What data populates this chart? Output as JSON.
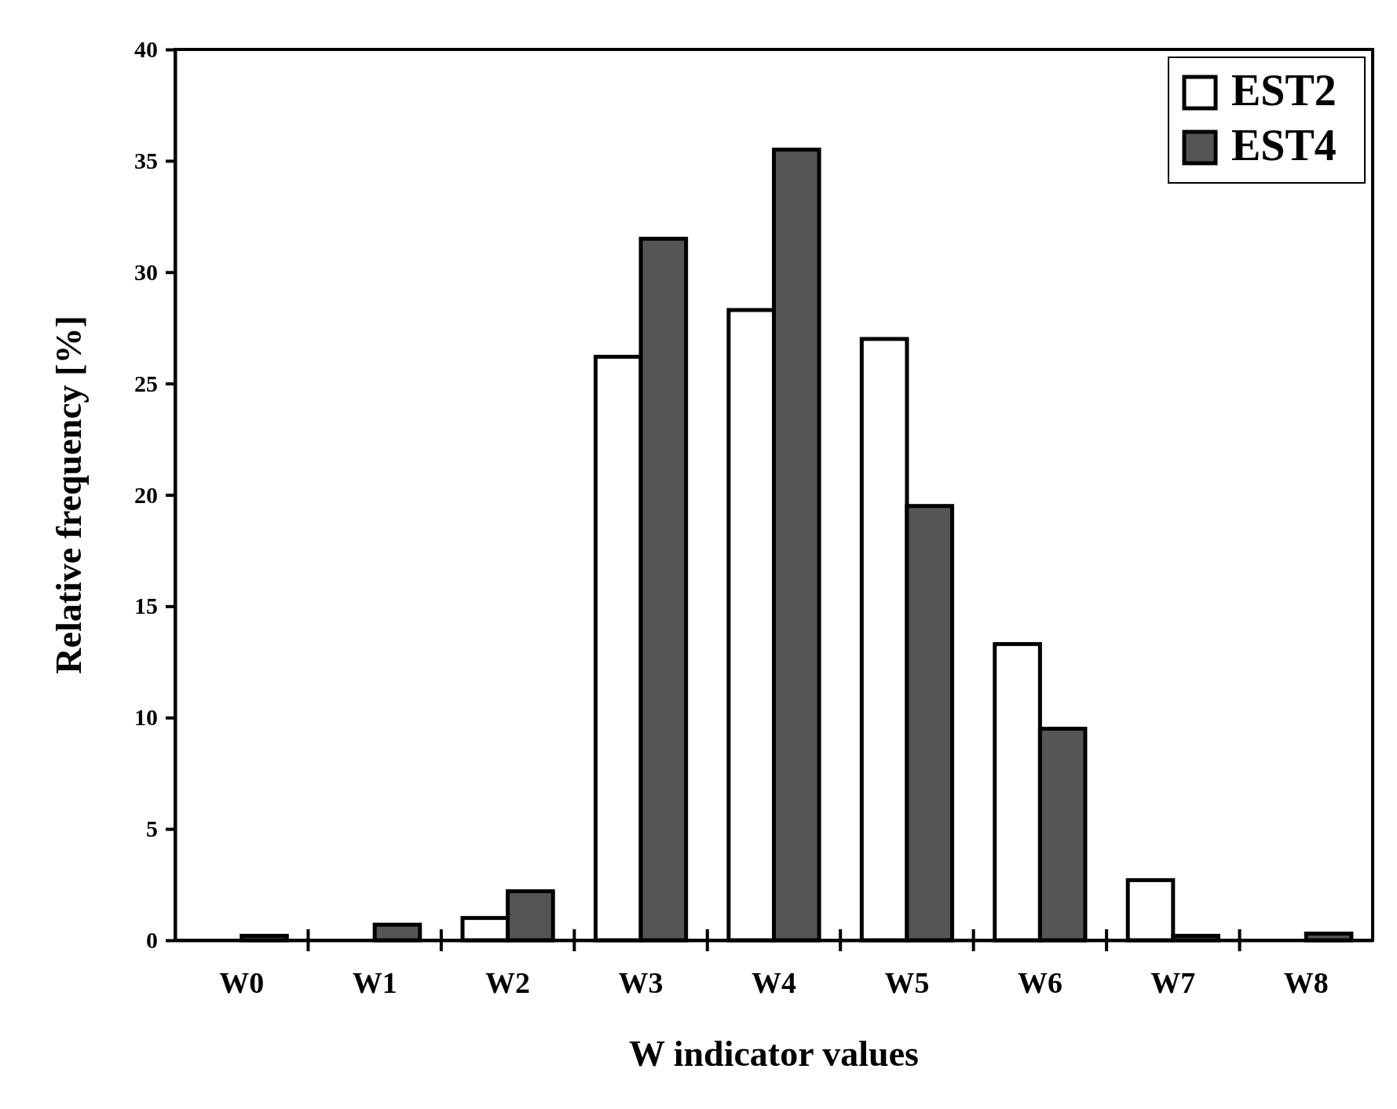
{
  "chart_data": {
    "type": "bar",
    "xlabel": "W indicator values",
    "ylabel": "Relative frequency [%]",
    "categories": [
      "W0",
      "W1",
      "W2",
      "W3",
      "W4",
      "W5",
      "W6",
      "W7",
      "W8"
    ],
    "series": [
      {
        "name": "EST2",
        "color": "#ffffff",
        "values": [
          0,
          0,
          1,
          26.2,
          28.3,
          27,
          13.3,
          2.7,
          0
        ]
      },
      {
        "name": "EST4",
        "color": "#555555",
        "values": [
          0.2,
          0.7,
          2.2,
          31.5,
          35.5,
          19.5,
          9.5,
          0.2,
          0.3
        ]
      }
    ],
    "ylim": [
      0,
      40
    ],
    "yticks": [
      0,
      5,
      10,
      15,
      20,
      25,
      30,
      35,
      40
    ],
    "legend": "top right",
    "grid": false
  }
}
